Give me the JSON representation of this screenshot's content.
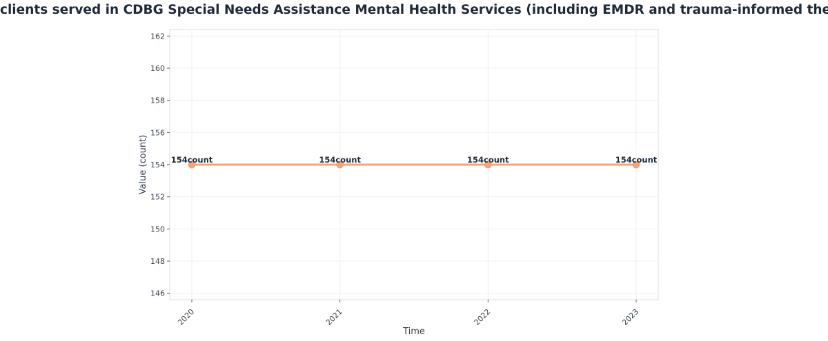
{
  "title": "clients served in CDBG Special Needs Assistance Mental Health Services (including EMDR and trauma-informed therapy)",
  "colors": {
    "line": "#f4a47c",
    "grid": "#f0f0f0",
    "frame": "#dddddd",
    "text": "#1f2937"
  },
  "chart_data": {
    "type": "line",
    "title": "clients served in CDBG Special Needs Assistance Mental Health Services (including EMDR and trauma-informed therapy)",
    "xlabel": "Time",
    "ylabel": "Value (count)",
    "x": [
      "2020",
      "2021",
      "2022",
      "2023"
    ],
    "series": [
      {
        "values": [
          154,
          154,
          154,
          154
        ],
        "point_labels": [
          "154count",
          "154count",
          "154count",
          "154count"
        ]
      }
    ],
    "ylim": [
      145.6,
      162.4
    ],
    "yticks": [
      146,
      148,
      150,
      152,
      154,
      156,
      158,
      160,
      162
    ],
    "grid": true,
    "legend": "none"
  }
}
